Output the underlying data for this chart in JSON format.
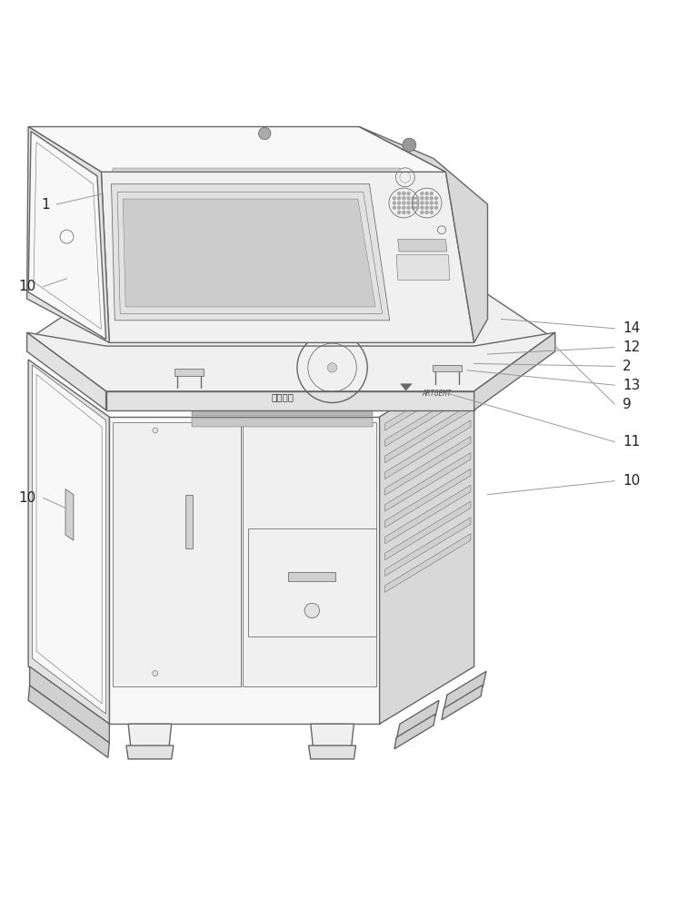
{
  "figure_width": 7.46,
  "figure_height": 10.0,
  "dpi": 100,
  "bg_color": "#ffffff",
  "ec": "#666666",
  "lw_main": 1.0,
  "lw_thin": 0.55,
  "fc_white": "#f8f8f8",
  "fc_light": "#f0f0f0",
  "fc_mid": "#e2e2e2",
  "fc_dark": "#d0d0d0",
  "fc_side": "#d8d8d8",
  "ann_color": "#999999",
  "ann_lw": 0.7,
  "ann_fs": 11
}
